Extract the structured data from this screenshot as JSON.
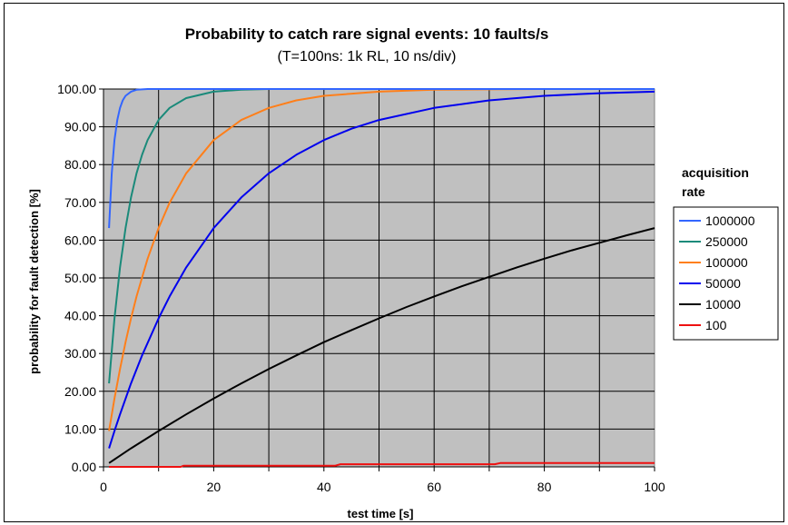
{
  "chart_data": {
    "type": "line",
    "title": "Probability to catch rare signal events: 10 faults/s",
    "subtitle": "(T=100ns: 1k RL, 10 ns/div)",
    "xlabel": "test time [s]",
    "ylabel": "probability for fault detection [%]",
    "xlim": [
      0,
      100
    ],
    "ylim": [
      0,
      100
    ],
    "x_ticks": [
      "0",
      "20",
      "40",
      "60",
      "80",
      "100"
    ],
    "y_ticks": [
      "0.00",
      "10.00",
      "20.00",
      "30.00",
      "40.00",
      "50.00",
      "60.00",
      "70.00",
      "80.00",
      "90.00",
      "100.00"
    ],
    "grid": true,
    "plot_background": "#c0c0c0",
    "legend_title_line1": "acquisition",
    "legend_title_line2": "rate",
    "legend_position": "right",
    "series": [
      {
        "name": "1000000",
        "color": "#3366ff",
        "x": [
          1,
          1.5,
          2,
          2.5,
          3,
          3.5,
          4,
          5,
          6,
          8,
          10,
          20,
          40,
          60,
          80,
          100
        ],
        "y": [
          63.2,
          77.7,
          86.5,
          91.8,
          95.0,
          97.0,
          98.2,
          99.3,
          99.8,
          100,
          100,
          100,
          100,
          100,
          100,
          100
        ]
      },
      {
        "name": "250000",
        "color": "#1a8a7a",
        "x": [
          1,
          2,
          3,
          4,
          5,
          6,
          7,
          8,
          10,
          12,
          15,
          20,
          25,
          30,
          40,
          60,
          80,
          100
        ],
        "y": [
          22.1,
          39.3,
          52.8,
          63.2,
          71.3,
          77.7,
          82.6,
          86.5,
          91.8,
          95.0,
          97.6,
          99.3,
          99.8,
          100,
          100,
          100,
          100,
          100
        ]
      },
      {
        "name": "100000",
        "color": "#ff7f1a",
        "x": [
          1,
          2,
          3,
          4,
          5,
          6,
          8,
          10,
          12,
          15,
          20,
          25,
          30,
          35,
          40,
          50,
          60,
          70,
          80,
          90,
          100
        ],
        "y": [
          9.5,
          18.1,
          25.9,
          33.0,
          39.3,
          45.1,
          55.1,
          63.2,
          69.9,
          77.7,
          86.5,
          91.8,
          95.0,
          97.0,
          98.2,
          99.3,
          99.8,
          99.9,
          100,
          100,
          100
        ]
      },
      {
        "name": "50000",
        "color": "#0000ee",
        "x": [
          1,
          2,
          3,
          5,
          7,
          10,
          12,
          15,
          20,
          25,
          30,
          35,
          40,
          45,
          50,
          60,
          70,
          80,
          90,
          100
        ],
        "y": [
          4.9,
          9.5,
          13.9,
          22.1,
          29.5,
          39.3,
          45.1,
          52.8,
          63.2,
          71.3,
          77.7,
          82.6,
          86.5,
          89.5,
          91.8,
          95.0,
          97.0,
          98.2,
          98.9,
          99.3
        ]
      },
      {
        "name": "10000",
        "color": "#000000",
        "x": [
          1,
          5,
          10,
          15,
          20,
          25,
          30,
          35,
          40,
          45,
          50,
          55,
          60,
          65,
          70,
          75,
          80,
          85,
          90,
          95,
          100
        ],
        "y": [
          1.0,
          4.9,
          9.5,
          13.9,
          18.1,
          22.1,
          25.9,
          29.5,
          33.0,
          36.2,
          39.3,
          42.3,
          45.1,
          47.8,
          50.3,
          52.8,
          55.1,
          57.3,
          59.3,
          61.3,
          63.2
        ]
      },
      {
        "name": "100",
        "color": "#ee1111",
        "x": [
          1,
          14,
          14.5,
          42,
          43,
          71,
          72,
          100
        ],
        "y": [
          0.0,
          0.0,
          0.3,
          0.3,
          0.7,
          0.7,
          1.0,
          1.0
        ]
      }
    ]
  }
}
